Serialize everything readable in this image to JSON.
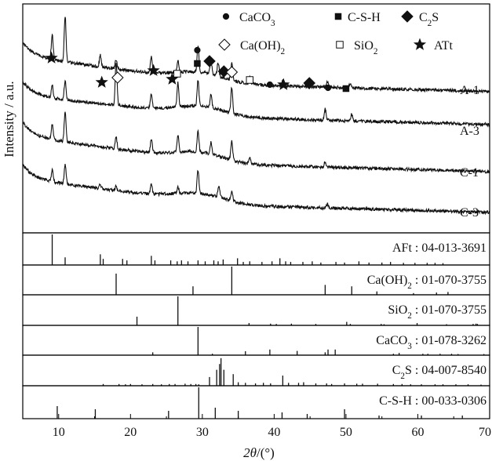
{
  "chart_data": {
    "type": "line",
    "xlabel": "2θ/(°)",
    "ylabel": "Intensity / a.u.",
    "xlim": [
      5,
      70
    ],
    "xticks": [
      10,
      20,
      30,
      40,
      50,
      60,
      70
    ],
    "grid": false,
    "legend": {
      "placement": "top-right",
      "entries": [
        {
          "symbol": "circle",
          "label": "CaCO3"
        },
        {
          "symbol": "square",
          "label": "C-S-H"
        },
        {
          "symbol": "diamond",
          "label": "C2S"
        },
        {
          "symbol": "diamond-open",
          "label": "Ca(OH)2"
        },
        {
          "symbol": "square-open",
          "label": "SiO2"
        },
        {
          "symbol": "star",
          "label": "ATt"
        }
      ]
    },
    "series": [
      {
        "name": "A-1",
        "peaks": [
          [
            9.1,
            0.55
          ],
          [
            10.9,
            1.0
          ],
          [
            15.8,
            0.25
          ],
          [
            18.0,
            0.2
          ],
          [
            22.9,
            0.35
          ],
          [
            26.6,
            0.25
          ],
          [
            29.4,
            0.55
          ],
          [
            31.2,
            0.3
          ],
          [
            32.2,
            0.3
          ],
          [
            34.1,
            0.4
          ],
          [
            36.6,
            0.15
          ],
          [
            41.2,
            0.12
          ],
          [
            47.4,
            0.12
          ],
          [
            50.6,
            0.1
          ]
        ]
      },
      {
        "name": "A-3",
        "peaks": [
          [
            9.1,
            0.3
          ],
          [
            10.9,
            0.45
          ],
          [
            18.0,
            1.0
          ],
          [
            22.9,
            0.35
          ],
          [
            26.6,
            0.55
          ],
          [
            29.4,
            0.6
          ],
          [
            31.2,
            0.3
          ],
          [
            34.1,
            0.6
          ],
          [
            47.1,
            0.25
          ],
          [
            50.8,
            0.15
          ]
        ]
      },
      {
        "name": "C-1",
        "peaks": [
          [
            9.1,
            0.4
          ],
          [
            10.9,
            0.8
          ],
          [
            18.0,
            0.3
          ],
          [
            22.9,
            0.35
          ],
          [
            26.6,
            0.45
          ],
          [
            29.4,
            0.55
          ],
          [
            31.2,
            0.3
          ],
          [
            34.1,
            0.5
          ],
          [
            36.6,
            0.15
          ],
          [
            47.1,
            0.15
          ]
        ]
      },
      {
        "name": "C-3",
        "peaks": [
          [
            9.1,
            0.35
          ],
          [
            10.9,
            0.6
          ],
          [
            15.8,
            0.12
          ],
          [
            18.0,
            0.12
          ],
          [
            22.9,
            0.3
          ],
          [
            26.6,
            0.2
          ],
          [
            29.4,
            0.7
          ],
          [
            32.3,
            0.35
          ],
          [
            34.1,
            0.3
          ],
          [
            47.4,
            0.12
          ]
        ]
      }
    ],
    "peak_markers": [
      {
        "symbol": "star",
        "x": 9.0
      },
      {
        "symbol": "star",
        "x": 16.0
      },
      {
        "symbol": "diamond-open",
        "x": 18.2
      },
      {
        "symbol": "star",
        "x": 23.2
      },
      {
        "symbol": "star",
        "x": 25.8
      },
      {
        "symbol": "square-open",
        "x": 26.5
      },
      {
        "symbol": "circle",
        "x": 29.3
      },
      {
        "symbol": "square",
        "x": 29.3
      },
      {
        "symbol": "diamond",
        "x": 31.0
      },
      {
        "symbol": "diamond",
        "x": 33.0
      },
      {
        "symbol": "diamond-open",
        "x": 34.1
      },
      {
        "symbol": "square-open",
        "x": 36.6
      },
      {
        "symbol": "circle",
        "x": 39.4
      },
      {
        "symbol": "star",
        "x": 41.3
      },
      {
        "symbol": "diamond",
        "x": 44.9
      },
      {
        "symbol": "circle",
        "x": 47.5
      },
      {
        "symbol": "square",
        "x": 50.0
      }
    ],
    "reference_panels": [
      {
        "label": "AFt : 04-013-3691",
        "lines": [
          [
            9.1,
            1.0
          ],
          [
            10.9,
            0.25
          ],
          [
            15.8,
            0.35
          ],
          [
            16.2,
            0.2
          ],
          [
            18.9,
            0.2
          ],
          [
            19.5,
            0.15
          ],
          [
            22.9,
            0.3
          ],
          [
            23.4,
            0.15
          ],
          [
            25.6,
            0.15
          ],
          [
            26.5,
            0.12
          ],
          [
            27.1,
            0.15
          ],
          [
            28.0,
            0.12
          ],
          [
            29.4,
            0.15
          ],
          [
            30.4,
            0.12
          ],
          [
            31.6,
            0.15
          ],
          [
            32.2,
            0.12
          ],
          [
            32.9,
            0.18
          ],
          [
            34.9,
            0.22
          ],
          [
            35.7,
            0.1
          ],
          [
            36.6,
            0.12
          ],
          [
            38.3,
            0.1
          ],
          [
            39.7,
            0.12
          ],
          [
            40.8,
            0.22
          ],
          [
            41.6,
            0.12
          ],
          [
            42.3,
            0.1
          ],
          [
            44.0,
            0.1
          ],
          [
            45.3,
            0.12
          ],
          [
            46.5,
            0.08
          ],
          [
            48.6,
            0.1
          ],
          [
            49.8,
            0.08
          ],
          [
            51.8,
            0.12
          ],
          [
            53.2,
            0.08
          ],
          [
            55.0,
            0.08
          ],
          [
            56.2,
            0.1
          ],
          [
            58.0,
            0.07
          ],
          [
            59.6,
            0.07
          ],
          [
            61.3,
            0.07
          ],
          [
            62.4,
            0.07
          ],
          [
            63.5,
            0.06
          ]
        ]
      },
      {
        "label": "Ca(OH)2 : 01-070-3755",
        "lines": [
          [
            18.0,
            0.75
          ],
          [
            28.7,
            0.3
          ],
          [
            34.1,
            1.0
          ],
          [
            47.1,
            0.35
          ],
          [
            50.8,
            0.3
          ],
          [
            54.3,
            0.12
          ],
          [
            59.4,
            0.06
          ],
          [
            62.6,
            0.08
          ],
          [
            64.2,
            0.1
          ]
        ]
      },
      {
        "label": "SiO2 : 01-070-3755",
        "lines": [
          [
            20.9,
            0.3
          ],
          [
            26.6,
            1.0
          ],
          [
            36.5,
            0.08
          ],
          [
            39.5,
            0.06
          ],
          [
            40.3,
            0.05
          ],
          [
            42.4,
            0.06
          ],
          [
            45.8,
            0.05
          ],
          [
            50.1,
            0.12
          ],
          [
            50.6,
            0.05
          ],
          [
            54.9,
            0.05
          ],
          [
            55.3,
            0.04
          ],
          [
            59.9,
            0.08
          ],
          [
            64.0,
            0.04
          ],
          [
            67.7,
            0.05
          ],
          [
            68.1,
            0.06
          ],
          [
            68.3,
            0.05
          ]
        ]
      },
      {
        "label": "CaCO3 : 01-078-3262",
        "lines": [
          [
            23.1,
            0.1
          ],
          [
            29.4,
            1.0
          ],
          [
            31.4,
            0.05
          ],
          [
            36.0,
            0.14
          ],
          [
            39.4,
            0.2
          ],
          [
            43.2,
            0.15
          ],
          [
            47.1,
            0.1
          ],
          [
            47.5,
            0.2
          ],
          [
            48.5,
            0.2
          ],
          [
            56.6,
            0.05
          ],
          [
            57.4,
            0.08
          ],
          [
            60.7,
            0.05
          ],
          [
            61.4,
            0.05
          ],
          [
            63.1,
            0.05
          ],
          [
            64.7,
            0.05
          ],
          [
            65.6,
            0.04
          ],
          [
            69.2,
            0.04
          ]
        ]
      },
      {
        "label": "C2S : 04-007-8540",
        "lines": [
          [
            16.2,
            0.06
          ],
          [
            18.4,
            0.06
          ],
          [
            19.3,
            0.05
          ],
          [
            20.0,
            0.06
          ],
          [
            21.6,
            0.05
          ],
          [
            23.1,
            0.06
          ],
          [
            24.3,
            0.05
          ],
          [
            25.4,
            0.06
          ],
          [
            26.2,
            0.06
          ],
          [
            27.6,
            0.07
          ],
          [
            28.4,
            0.06
          ],
          [
            29.1,
            0.06
          ],
          [
            29.5,
            0.05
          ],
          [
            31.0,
            0.3
          ],
          [
            32.0,
            0.55
          ],
          [
            32.4,
            0.75
          ],
          [
            32.6,
            0.95
          ],
          [
            33.0,
            0.55
          ],
          [
            34.3,
            0.4
          ],
          [
            35.0,
            0.12
          ],
          [
            36.0,
            0.1
          ],
          [
            37.4,
            0.08
          ],
          [
            38.5,
            0.1
          ],
          [
            39.5,
            0.08
          ],
          [
            41.2,
            0.35
          ],
          [
            42.0,
            0.1
          ],
          [
            43.4,
            0.1
          ],
          [
            44.1,
            0.12
          ],
          [
            45.8,
            0.08
          ],
          [
            47.3,
            0.08
          ],
          [
            48.0,
            0.06
          ],
          [
            49.8,
            0.08
          ],
          [
            51.5,
            0.07
          ],
          [
            52.3,
            0.07
          ],
          [
            54.4,
            0.07
          ],
          [
            56.6,
            0.06
          ],
          [
            57.8,
            0.06
          ],
          [
            59.0,
            0.05
          ],
          [
            60.5,
            0.05
          ],
          [
            62.4,
            0.05
          ],
          [
            63.5,
            0.05
          ],
          [
            65.3,
            0.05
          ],
          [
            67.0,
            0.05
          ],
          [
            68.8,
            0.04
          ]
        ]
      },
      {
        "label": "C-S-H : 00-033-0306",
        "lines": [
          [
            9.8,
            0.4
          ],
          [
            15.1,
            0.3
          ],
          [
            25.3,
            0.25
          ],
          [
            29.5,
            1.0
          ],
          [
            31.8,
            0.35
          ],
          [
            35.0,
            0.25
          ],
          [
            41.1,
            0.2
          ],
          [
            44.6,
            0.15
          ],
          [
            49.8,
            0.3
          ],
          [
            54.6,
            0.1
          ],
          [
            60.5,
            0.1
          ],
          [
            66.2,
            0.1
          ]
        ]
      }
    ]
  }
}
